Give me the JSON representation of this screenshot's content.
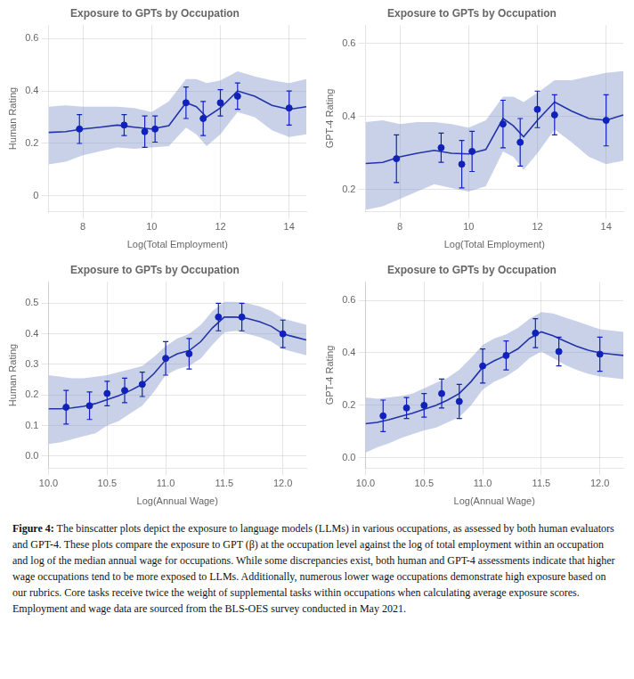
{
  "chart_data": [
    {
      "type": "line",
      "title": "Exposure to GPTs by Occupation",
      "x_label": "Log(Total Employment)",
      "y_label": "Human Rating",
      "xlim": [
        7,
        14.5
      ],
      "ylim": [
        -0.06,
        0.65
      ],
      "xticks": [
        8,
        10,
        12,
        14
      ],
      "yticks": [
        0,
        0.2,
        0.4,
        0.6
      ],
      "grid": true,
      "series": [
        {
          "type": "band",
          "color": "#8899cc",
          "x": [
            7.0,
            7.5,
            8.0,
            8.5,
            9.0,
            9.5,
            10.0,
            10.5,
            11.0,
            11.3,
            11.6,
            12.0,
            12.5,
            13.0,
            13.5,
            14.0,
            14.5
          ],
          "upper": [
            0.34,
            0.345,
            0.34,
            0.34,
            0.34,
            0.335,
            0.32,
            0.36,
            0.445,
            0.445,
            0.43,
            0.44,
            0.475,
            0.455,
            0.44,
            0.43,
            0.445
          ],
          "lower": [
            0.12,
            0.13,
            0.155,
            0.17,
            0.185,
            0.18,
            0.185,
            0.19,
            0.26,
            0.235,
            0.19,
            0.235,
            0.32,
            0.3,
            0.25,
            0.225,
            0.235
          ]
        },
        {
          "type": "line",
          "color": "#2233aa",
          "x": [
            7.0,
            7.5,
            8.0,
            8.5,
            9.0,
            9.5,
            10.0,
            10.5,
            11.0,
            11.3,
            11.6,
            12.0,
            12.5,
            13.0,
            13.5,
            14.0,
            14.5
          ],
          "values": [
            0.242,
            0.245,
            0.255,
            0.262,
            0.27,
            0.262,
            0.255,
            0.268,
            0.355,
            0.34,
            0.3,
            0.335,
            0.4,
            0.38,
            0.345,
            0.33,
            0.34
          ]
        },
        {
          "type": "scatter",
          "color": "#1122bb",
          "marker": "circle",
          "x": [
            7.9,
            9.2,
            9.8,
            10.1,
            11.0,
            11.5,
            12.0,
            12.5,
            14.0
          ],
          "values": [
            0.255,
            0.27,
            0.245,
            0.255,
            0.355,
            0.295,
            0.355,
            0.38,
            0.335
          ],
          "yerr": [
            0.055,
            0.04,
            0.06,
            0.05,
            0.06,
            0.065,
            0.05,
            0.05,
            0.065
          ]
        }
      ]
    },
    {
      "type": "line",
      "title": "Exposure to GPTs by Occupation",
      "x_label": "Log(Total Employment)",
      "y_label": "GPT-4 Rating",
      "xlim": [
        7,
        14.5
      ],
      "ylim": [
        0.14,
        0.65
      ],
      "xticks": [
        8,
        10,
        12,
        14
      ],
      "yticks": [
        0.2,
        0.4,
        0.6
      ],
      "grid": true,
      "series": [
        {
          "type": "band",
          "color": "#8899cc",
          "x": [
            7.0,
            7.5,
            8.0,
            8.5,
            9.0,
            9.5,
            10.0,
            10.5,
            11.0,
            11.3,
            11.6,
            12.0,
            12.5,
            13.0,
            13.5,
            14.0,
            14.5
          ],
          "upper": [
            0.385,
            0.39,
            0.38,
            0.385,
            0.385,
            0.38,
            0.37,
            0.39,
            0.455,
            0.455,
            0.44,
            0.465,
            0.5,
            0.5,
            0.51,
            0.52,
            0.525
          ],
          "lower": [
            0.145,
            0.155,
            0.175,
            0.195,
            0.215,
            0.205,
            0.195,
            0.21,
            0.305,
            0.29,
            0.255,
            0.3,
            0.365,
            0.33,
            0.29,
            0.27,
            0.28
          ]
        },
        {
          "type": "line",
          "color": "#2233aa",
          "x": [
            7.0,
            7.5,
            8.0,
            8.5,
            9.0,
            9.5,
            10.0,
            10.5,
            11.0,
            11.3,
            11.6,
            12.0,
            12.5,
            13.0,
            13.5,
            14.0,
            14.5
          ],
          "values": [
            0.272,
            0.275,
            0.29,
            0.3,
            0.308,
            0.3,
            0.298,
            0.31,
            0.395,
            0.375,
            0.345,
            0.39,
            0.44,
            0.415,
            0.395,
            0.39,
            0.405
          ]
        },
        {
          "type": "scatter",
          "color": "#1122bb",
          "marker": "circle",
          "x": [
            7.9,
            9.2,
            9.8,
            10.1,
            11.0,
            11.5,
            12.0,
            12.5,
            14.0
          ],
          "values": [
            0.285,
            0.315,
            0.27,
            0.305,
            0.38,
            0.33,
            0.42,
            0.405,
            0.39
          ],
          "yerr": [
            0.065,
            0.04,
            0.065,
            0.055,
            0.065,
            0.065,
            0.05,
            0.055,
            0.07
          ]
        }
      ]
    },
    {
      "type": "line",
      "title": "Exposure to GPTs by Occupation",
      "x_label": "Log(Annual Wage)",
      "y_label": "Human Rating",
      "xlim": [
        10.0,
        12.2
      ],
      "ylim": [
        -0.04,
        0.57
      ],
      "xticks": [
        {
          "value": 10.0,
          "label": "10.0"
        },
        10.5,
        {
          "value": 11.0,
          "label": "11.0"
        },
        11.5,
        {
          "value": 12.0,
          "label": "12.0"
        }
      ],
      "yticks": [
        {
          "value": 0.0,
          "label": "0.0"
        },
        0.1,
        0.2,
        0.3,
        0.4,
        0.5
      ],
      "grid": true,
      "series": [
        {
          "type": "band",
          "color": "#8899cc",
          "x": [
            10.0,
            10.1,
            10.2,
            10.3,
            10.4,
            10.5,
            10.6,
            10.7,
            10.8,
            10.9,
            11.0,
            11.1,
            11.2,
            11.3,
            11.4,
            11.5,
            11.6,
            11.7,
            11.8,
            11.9,
            12.0,
            12.1,
            12.2
          ],
          "upper": [
            0.265,
            0.26,
            0.255,
            0.255,
            0.26,
            0.265,
            0.275,
            0.285,
            0.295,
            0.325,
            0.36,
            0.385,
            0.4,
            0.43,
            0.475,
            0.505,
            0.505,
            0.5,
            0.49,
            0.475,
            0.45,
            0.44,
            0.43
          ],
          "lower": [
            0.04,
            0.045,
            0.055,
            0.065,
            0.075,
            0.1,
            0.115,
            0.14,
            0.165,
            0.21,
            0.265,
            0.285,
            0.295,
            0.32,
            0.365,
            0.405,
            0.41,
            0.4,
            0.39,
            0.375,
            0.35,
            0.34,
            0.33
          ]
        },
        {
          "type": "line",
          "color": "#2233aa",
          "x": [
            10.0,
            10.1,
            10.2,
            10.3,
            10.4,
            10.5,
            10.6,
            10.7,
            10.8,
            10.9,
            11.0,
            11.1,
            11.2,
            11.3,
            11.4,
            11.5,
            11.6,
            11.7,
            11.8,
            11.9,
            12.0,
            12.1,
            12.2
          ],
          "values": [
            0.155,
            0.155,
            0.158,
            0.163,
            0.172,
            0.185,
            0.198,
            0.215,
            0.235,
            0.27,
            0.315,
            0.335,
            0.345,
            0.375,
            0.42,
            0.455,
            0.455,
            0.45,
            0.44,
            0.425,
            0.4,
            0.39,
            0.38
          ]
        },
        {
          "type": "scatter",
          "color": "#1122bb",
          "marker": "circle",
          "x": [
            10.15,
            10.35,
            10.5,
            10.65,
            10.8,
            11.0,
            11.2,
            11.45,
            11.65,
            12.0
          ],
          "values": [
            0.16,
            0.165,
            0.205,
            0.215,
            0.235,
            0.32,
            0.335,
            0.455,
            0.455,
            0.4
          ],
          "yerr": [
            0.055,
            0.045,
            0.04,
            0.04,
            0.04,
            0.055,
            0.05,
            0.045,
            0.045,
            0.045
          ]
        }
      ]
    },
    {
      "type": "line",
      "title": "Exposure to GPTs by Occupation",
      "x_label": "Log(Annual Wage)",
      "y_label": "GPT-4 Rating",
      "xlim": [
        10.0,
        12.2
      ],
      "ylim": [
        -0.04,
        0.67
      ],
      "xticks": [
        {
          "value": 10.0,
          "label": "10.0"
        },
        10.5,
        {
          "value": 11.0,
          "label": "11.0"
        },
        11.5,
        {
          "value": 12.0,
          "label": "12.0"
        }
      ],
      "yticks": [
        {
          "value": 0.0,
          "label": "0.0"
        },
        0.2,
        0.4,
        0.6
      ],
      "grid": true,
      "series": [
        {
          "type": "band",
          "color": "#8899cc",
          "x": [
            10.0,
            10.1,
            10.2,
            10.3,
            10.4,
            10.5,
            10.6,
            10.7,
            10.8,
            10.9,
            11.0,
            11.1,
            11.2,
            11.3,
            11.4,
            11.5,
            11.6,
            11.7,
            11.8,
            11.9,
            12.0,
            12.1,
            12.2
          ],
          "upper": [
            0.23,
            0.225,
            0.23,
            0.235,
            0.245,
            0.265,
            0.285,
            0.305,
            0.335,
            0.38,
            0.43,
            0.455,
            0.47,
            0.495,
            0.53,
            0.555,
            0.55,
            0.535,
            0.52,
            0.505,
            0.49,
            0.485,
            0.48
          ],
          "lower": [
            0.02,
            0.04,
            0.055,
            0.075,
            0.09,
            0.105,
            0.115,
            0.135,
            0.155,
            0.2,
            0.26,
            0.29,
            0.31,
            0.34,
            0.38,
            0.405,
            0.38,
            0.355,
            0.335,
            0.32,
            0.31,
            0.305,
            0.3
          ]
        },
        {
          "type": "line",
          "color": "#2233aa",
          "x": [
            10.0,
            10.1,
            10.2,
            10.3,
            10.4,
            10.5,
            10.6,
            10.7,
            10.8,
            10.9,
            11.0,
            11.1,
            11.2,
            11.3,
            11.4,
            11.5,
            11.6,
            11.7,
            11.8,
            11.9,
            12.0,
            12.1,
            12.2
          ],
          "values": [
            0.13,
            0.135,
            0.145,
            0.158,
            0.17,
            0.185,
            0.2,
            0.22,
            0.245,
            0.29,
            0.345,
            0.37,
            0.39,
            0.415,
            0.455,
            0.48,
            0.465,
            0.445,
            0.425,
            0.41,
            0.4,
            0.395,
            0.39
          ]
        },
        {
          "type": "scatter",
          "color": "#1122bb",
          "marker": "circle",
          "x": [
            10.15,
            10.35,
            10.5,
            10.65,
            10.8,
            11.0,
            11.2,
            11.45,
            11.65,
            12.0
          ],
          "values": [
            0.16,
            0.19,
            0.2,
            0.245,
            0.215,
            0.35,
            0.39,
            0.475,
            0.405,
            0.395
          ],
          "yerr": [
            0.06,
            0.04,
            0.045,
            0.055,
            0.065,
            0.065,
            0.055,
            0.055,
            0.055,
            0.065
          ]
        }
      ]
    }
  ],
  "caption": {
    "bold": "Figure 4:",
    "text": "  The binscatter plots depict the exposure to language models (LLMs) in various occupations, as assessed by both human evaluators and GPT-4.  These plots compare the exposure to GPT (β) at the occupation level against the log of total employment within an occupation and log of the median annual wage for occupations.  While some discrepancies exist, both human and GPT-4 assessments indicate that higher wage occupations tend to be more exposed to LLMs.  Additionally, numerous lower wage occupations demonstrate high exposure based on our rubrics.  Core tasks receive twice the weight of supplemental tasks within occupations when calculating average exposure scores.  Employment and wage data are sourced from the BLS-OES survey conducted in May 2021."
  }
}
